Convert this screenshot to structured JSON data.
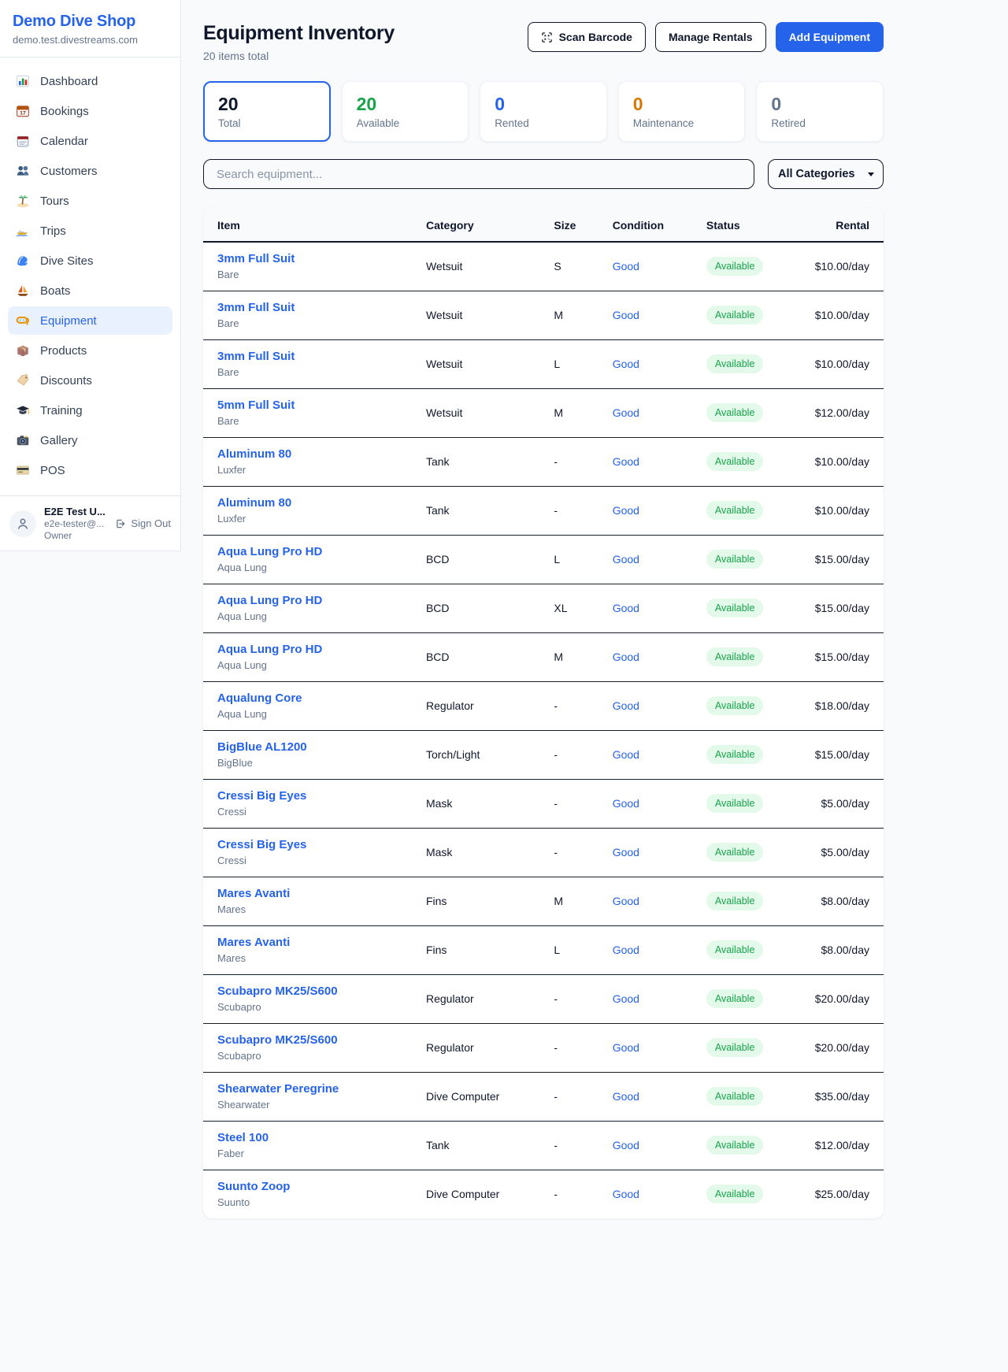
{
  "sidebar": {
    "brand": "Demo Dive Shop",
    "domain": "demo.test.divestreams.com",
    "items": [
      {
        "label": "Dashboard",
        "icon": "bar-chart",
        "active": false
      },
      {
        "label": "Bookings",
        "icon": "calendar-date",
        "active": false
      },
      {
        "label": "Calendar",
        "icon": "calendar-pad",
        "active": false
      },
      {
        "label": "Customers",
        "icon": "people",
        "active": false
      },
      {
        "label": "Tours",
        "icon": "palm-island",
        "active": false
      },
      {
        "label": "Trips",
        "icon": "speedboat",
        "active": false
      },
      {
        "label": "Dive Sites",
        "icon": "wave",
        "active": false
      },
      {
        "label": "Boats",
        "icon": "sailboat",
        "active": false
      },
      {
        "label": "Equipment",
        "icon": "dive-mask",
        "active": true
      },
      {
        "label": "Products",
        "icon": "package-box",
        "active": false
      },
      {
        "label": "Discounts",
        "icon": "price-tag",
        "active": false
      },
      {
        "label": "Training",
        "icon": "grad-cap",
        "active": false
      },
      {
        "label": "Gallery",
        "icon": "camera",
        "active": false
      },
      {
        "label": "POS",
        "icon": "credit-card",
        "active": false
      }
    ],
    "user": {
      "name": "E2E Test U...",
      "email": "e2e-tester@...",
      "role": "Owner",
      "signout_label": "Sign Out"
    }
  },
  "header": {
    "title": "Equipment Inventory",
    "subtitle": "20 items total",
    "scan_button": "Scan Barcode",
    "manage_button": "Manage Rentals",
    "add_button": "Add Equipment"
  },
  "stats": [
    {
      "value": "20",
      "label": "Total",
      "color": "#0f172a",
      "selected": true
    },
    {
      "value": "20",
      "label": "Available",
      "color": "#16a34a",
      "selected": false
    },
    {
      "value": "0",
      "label": "Rented",
      "color": "#2563eb",
      "selected": false
    },
    {
      "value": "0",
      "label": "Maintenance",
      "color": "#d97706",
      "selected": false
    },
    {
      "value": "0",
      "label": "Retired",
      "color": "#64748b",
      "selected": false
    }
  ],
  "filters": {
    "search_placeholder": "Search equipment...",
    "category_selected": "All Categories"
  },
  "table": {
    "headers": [
      "Item",
      "Category",
      "Size",
      "Condition",
      "Status",
      "Rental"
    ],
    "rows": [
      {
        "name": "3mm Full Suit",
        "brand": "Bare",
        "category": "Wetsuit",
        "size": "S",
        "condition": "Good",
        "status": "Available",
        "rental": "$10.00/day"
      },
      {
        "name": "3mm Full Suit",
        "brand": "Bare",
        "category": "Wetsuit",
        "size": "M",
        "condition": "Good",
        "status": "Available",
        "rental": "$10.00/day"
      },
      {
        "name": "3mm Full Suit",
        "brand": "Bare",
        "category": "Wetsuit",
        "size": "L",
        "condition": "Good",
        "status": "Available",
        "rental": "$10.00/day"
      },
      {
        "name": "5mm Full Suit",
        "brand": "Bare",
        "category": "Wetsuit",
        "size": "M",
        "condition": "Good",
        "status": "Available",
        "rental": "$12.00/day"
      },
      {
        "name": "Aluminum 80",
        "brand": "Luxfer",
        "category": "Tank",
        "size": "-",
        "condition": "Good",
        "status": "Available",
        "rental": "$10.00/day"
      },
      {
        "name": "Aluminum 80",
        "brand": "Luxfer",
        "category": "Tank",
        "size": "-",
        "condition": "Good",
        "status": "Available",
        "rental": "$10.00/day"
      },
      {
        "name": "Aqua Lung Pro HD",
        "brand": "Aqua Lung",
        "category": "BCD",
        "size": "L",
        "condition": "Good",
        "status": "Available",
        "rental": "$15.00/day"
      },
      {
        "name": "Aqua Lung Pro HD",
        "brand": "Aqua Lung",
        "category": "BCD",
        "size": "XL",
        "condition": "Good",
        "status": "Available",
        "rental": "$15.00/day"
      },
      {
        "name": "Aqua Lung Pro HD",
        "brand": "Aqua Lung",
        "category": "BCD",
        "size": "M",
        "condition": "Good",
        "status": "Available",
        "rental": "$15.00/day"
      },
      {
        "name": "Aqualung Core",
        "brand": "Aqua Lung",
        "category": "Regulator",
        "size": "-",
        "condition": "Good",
        "status": "Available",
        "rental": "$18.00/day"
      },
      {
        "name": "BigBlue AL1200",
        "brand": "BigBlue",
        "category": "Torch/Light",
        "size": "-",
        "condition": "Good",
        "status": "Available",
        "rental": "$15.00/day"
      },
      {
        "name": "Cressi Big Eyes",
        "brand": "Cressi",
        "category": "Mask",
        "size": "-",
        "condition": "Good",
        "status": "Available",
        "rental": "$5.00/day"
      },
      {
        "name": "Cressi Big Eyes",
        "brand": "Cressi",
        "category": "Mask",
        "size": "-",
        "condition": "Good",
        "status": "Available",
        "rental": "$5.00/day"
      },
      {
        "name": "Mares Avanti",
        "brand": "Mares",
        "category": "Fins",
        "size": "M",
        "condition": "Good",
        "status": "Available",
        "rental": "$8.00/day"
      },
      {
        "name": "Mares Avanti",
        "brand": "Mares",
        "category": "Fins",
        "size": "L",
        "condition": "Good",
        "status": "Available",
        "rental": "$8.00/day"
      },
      {
        "name": "Scubapro MK25/S600",
        "brand": "Scubapro",
        "category": "Regulator",
        "size": "-",
        "condition": "Good",
        "status": "Available",
        "rental": "$20.00/day"
      },
      {
        "name": "Scubapro MK25/S600",
        "brand": "Scubapro",
        "category": "Regulator",
        "size": "-",
        "condition": "Good",
        "status": "Available",
        "rental": "$20.00/day"
      },
      {
        "name": "Shearwater Peregrine",
        "brand": "Shearwater",
        "category": "Dive Computer",
        "size": "-",
        "condition": "Good",
        "status": "Available",
        "rental": "$35.00/day"
      },
      {
        "name": "Steel 100",
        "brand": "Faber",
        "category": "Tank",
        "size": "-",
        "condition": "Good",
        "status": "Available",
        "rental": "$12.00/day"
      },
      {
        "name": "Suunto Zoop",
        "brand": "Suunto",
        "category": "Dive Computer",
        "size": "-",
        "condition": "Good",
        "status": "Available",
        "rental": "$25.00/day"
      }
    ]
  },
  "colors": {
    "accent_blue": "#2563eb",
    "status_green": "#16a34a",
    "maintenance_orange": "#d97706",
    "muted_gray": "#64748b",
    "badge_bg": "#e3f9ea"
  }
}
